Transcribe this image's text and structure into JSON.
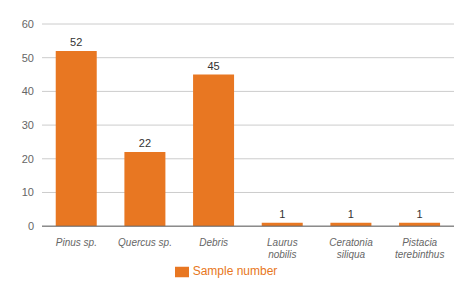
{
  "chart_data": {
    "type": "bar",
    "categories": [
      "Pinus sp.",
      "Quercus sp.",
      "Debris",
      "Laurus\nnobilis",
      "Ceratonia\nsiliqua",
      "Pistacia\nterebinthus"
    ],
    "series": [
      {
        "name": "Sample number",
        "color": "#E87722",
        "values": [
          52,
          22,
          45,
          1,
          1,
          1
        ]
      }
    ],
    "ylim": [
      0,
      60
    ],
    "yticks": [
      0,
      10,
      20,
      30,
      40,
      50,
      60
    ],
    "grid": true,
    "legend": "bottom",
    "data_labels": true
  }
}
